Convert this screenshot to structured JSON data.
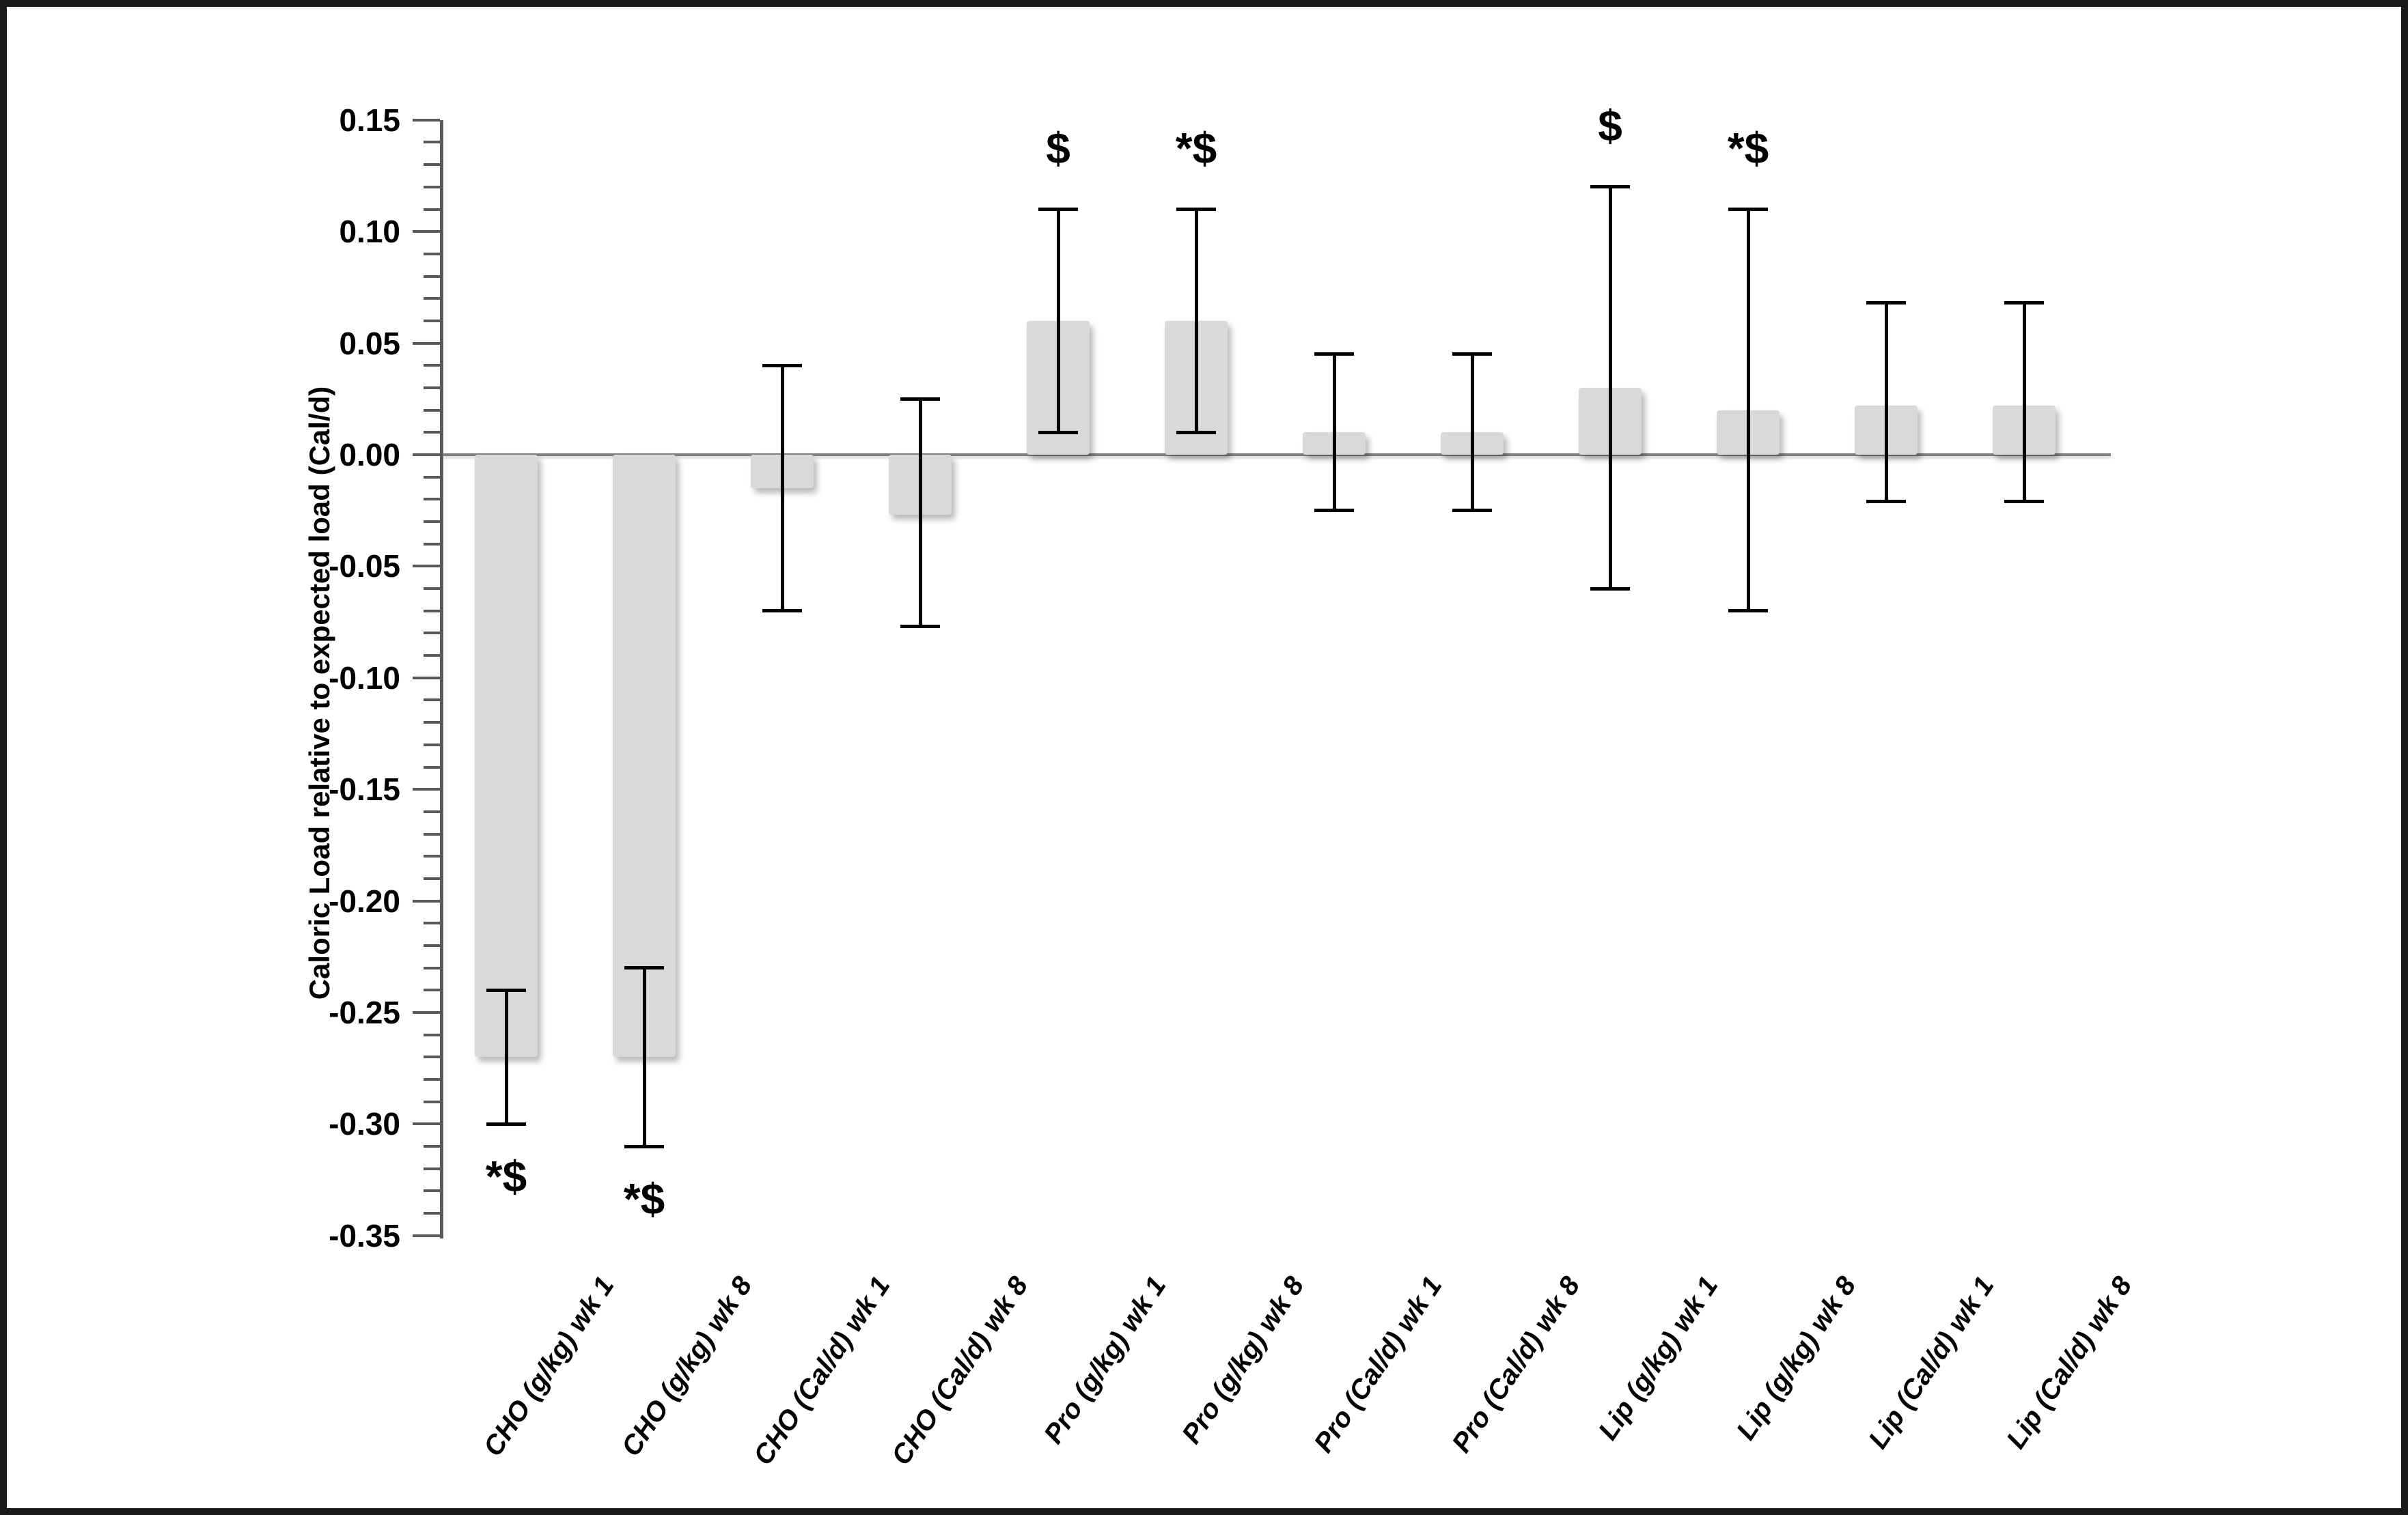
{
  "figure": {
    "background": "#ffffff",
    "border_color": "#1a1a1a"
  },
  "chart_data": {
    "type": "bar",
    "title": "",
    "xlabel": "",
    "ylabel": "Caloric Load relative to expected load (Cal/d)",
    "ylim": [
      -0.35,
      0.15
    ],
    "y_major_step": 0.05,
    "y_minor_step": 0.01,
    "grid": "off",
    "legend": "none",
    "y_tick_labels": [
      "0.15",
      "0.10",
      "0.05",
      "0.00",
      "-0.05",
      "-0.10",
      "-0.15",
      "-0.20",
      "-0.25",
      "-0.30",
      "-0.35"
    ],
    "categories": [
      "CHO (g/kg) wk 1",
      "CHO (g/kg) wk 8",
      "CHO (Cal/d) wk 1",
      "CHO (Cal/d) wk 8",
      "Pro (g/kg) wk 1",
      "Pro (g/kg) wk 8",
      "Pro (Cal/d) wk 1",
      "Pro (Cal/d) wk 8",
      "Lip (g/kg) wk 1",
      "Lip (g/kg) wk 8",
      "Lip (Cal/d) wk 1",
      "Lip (Cal/d) wk 8"
    ],
    "series": [
      {
        "name": "Caloric load relative to expected load",
        "values": [
          -0.27,
          -0.27,
          -0.015,
          -0.027,
          0.06,
          0.06,
          0.01,
          0.01,
          0.03,
          0.02,
          0.022,
          0.022
        ],
        "error_high": [
          -0.24,
          -0.23,
          0.04,
          0.025,
          0.11,
          0.11,
          0.045,
          0.045,
          0.12,
          0.11,
          0.068,
          0.068
        ],
        "error_low": [
          -0.3,
          -0.31,
          -0.07,
          -0.077,
          0.01,
          0.01,
          -0.025,
          -0.025,
          -0.06,
          -0.07,
          -0.021,
          -0.021
        ]
      }
    ],
    "annotations": [
      "*$",
      "*$",
      "",
      "",
      "$",
      "*$",
      "",
      "",
      "$",
      "*$",
      "",
      ""
    ],
    "annotation_side": [
      "below",
      "below",
      "",
      "",
      "above",
      "above",
      "",
      "",
      "above",
      "above",
      "",
      ""
    ],
    "colors": {
      "bar_fill": "#d9d9d9",
      "error_bar": "#000000",
      "zero_line": "#808080",
      "axis": "#595959",
      "text": "#000000"
    }
  }
}
